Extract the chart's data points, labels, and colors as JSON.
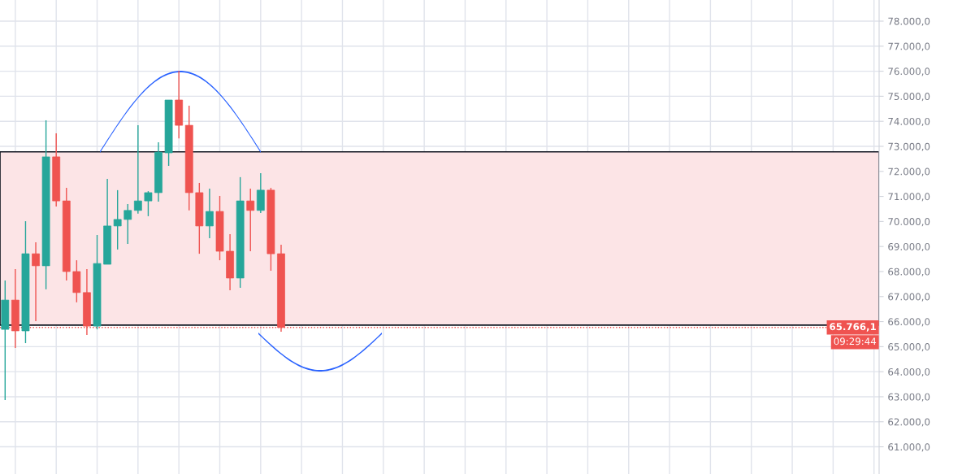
{
  "chart_data": {
    "type": "candlestick",
    "categories": [
      null,
      null,
      null,
      null,
      null,
      null,
      null,
      null,
      null,
      null,
      null,
      null,
      null,
      null,
      null,
      null,
      null,
      null,
      null,
      null,
      null,
      null,
      null,
      null,
      null,
      null,
      null,
      null,
      null,
      null,
      null,
      null,
      null,
      null,
      null,
      null,
      null,
      null,
      null,
      null,
      null,
      null,
      null,
      null,
      null,
      null,
      null,
      null,
      null,
      null,
      null,
      null,
      null,
      null,
      null,
      null,
      null,
      null,
      null,
      null,
      null,
      null,
      null,
      null,
      null,
      null,
      null,
      null,
      null,
      null,
      null,
      null,
      null,
      null,
      null,
      null,
      null,
      null,
      null,
      null,
      null,
      null,
      null,
      null,
      null,
      null
    ],
    "ohlc": [
      [
        65690,
        67640,
        62870,
        66860
      ],
      [
        66860,
        68100,
        64950,
        65630
      ],
      [
        65630,
        70010,
        65140,
        68710
      ],
      [
        68710,
        69170,
        66020,
        68230
      ],
      [
        68230,
        74040,
        67290,
        72580
      ],
      [
        72580,
        73520,
        70600,
        70820
      ],
      [
        70820,
        71340,
        67640,
        68000
      ],
      [
        68000,
        68450,
        66770,
        67160
      ],
      [
        67160,
        68100,
        65470,
        65820
      ],
      [
        65820,
        69460,
        65690,
        68320
      ],
      [
        68290,
        71700,
        68290,
        69820
      ],
      [
        69820,
        71250,
        68880,
        70080
      ],
      [
        70080,
        70690,
        69100,
        70440
      ],
      [
        70440,
        73840,
        70310,
        70820
      ],
      [
        70820,
        71210,
        70210,
        71150
      ],
      [
        71150,
        73160,
        70790,
        72770
      ],
      [
        72740,
        74850,
        72220,
        74850
      ],
      [
        74850,
        76020,
        73320,
        73840
      ],
      [
        73840,
        74620,
        70440,
        71150
      ],
      [
        71150,
        71540,
        68710,
        69820
      ],
      [
        69820,
        71310,
        69330,
        70400
      ],
      [
        70400,
        71020,
        68450,
        68810
      ],
      [
        68810,
        69490,
        67250,
        67740
      ],
      [
        67740,
        71770,
        67350,
        70820
      ],
      [
        70820,
        71310,
        68810,
        70440
      ],
      [
        70440,
        71930,
        70340,
        71250
      ],
      [
        71250,
        71340,
        68030,
        68710
      ],
      [
        68710,
        69070,
        65600,
        65766.1
      ],
      null,
      null,
      null,
      null,
      null,
      null,
      null,
      null,
      null,
      null,
      null,
      null,
      null,
      null,
      null,
      null,
      null,
      null,
      null,
      null,
      null,
      null,
      null,
      null,
      null,
      null,
      null,
      null,
      null,
      null,
      null,
      null,
      null,
      null,
      null,
      null,
      null,
      null,
      null,
      null,
      null,
      null,
      null,
      null,
      null,
      null,
      null,
      null,
      null,
      null,
      null,
      null,
      null,
      null,
      null,
      null,
      null,
      null
    ],
    "colors": [
      "#26a69a",
      "#ef5350",
      "#26a69a",
      "#ef5350",
      "#26a69a",
      "#ef5350",
      "#ef5350",
      "#ef5350",
      "#ef5350",
      "#26a69a",
      "#26a69a",
      "#26a69a",
      "#26a69a",
      "#26a69a",
      "#26a69a",
      "#26a69a",
      "#26a69a",
      "#ef5350",
      "#ef5350",
      "#ef5350",
      "#26a69a",
      "#ef5350",
      "#ef5350",
      "#26a69a",
      "#ef5350",
      "#26a69a",
      "#ef5350",
      "#ef5350",
      null,
      null,
      null,
      null,
      null,
      null,
      null,
      null,
      null,
      null,
      null,
      null,
      null,
      null,
      null,
      null,
      null,
      null,
      null,
      null,
      null,
      null,
      null,
      null,
      null,
      null,
      null,
      null,
      null,
      null,
      null,
      null,
      null,
      null,
      null,
      null,
      null,
      null,
      null,
      null,
      null,
      null,
      null,
      null,
      null,
      null,
      null,
      null,
      null,
      null,
      null,
      null,
      null,
      null,
      null,
      null,
      null,
      null
    ],
    "bands": [
      {
        "axis": "y",
        "from": 65860,
        "to": 72780,
        "color": "#fce4e6"
      }
    ],
    "ref_lines": [
      {
        "axis": "y",
        "value": 65766.1,
        "label": "65.766,1",
        "color": "#ef5350",
        "line_style": "dotted"
      }
    ],
    "annotations": [
      "09:29:44"
    ],
    "ylim": [
      59914,
      78844
    ],
    "yticks": [
      {
        "value": 61000,
        "label": "61.000,0"
      },
      {
        "value": 62000,
        "label": "62.000,0"
      },
      {
        "value": 63000,
        "label": "63.000,0"
      },
      {
        "value": 64000,
        "label": "64.000,0"
      },
      {
        "value": 65000,
        "label": "65.000,0"
      },
      {
        "value": 66000,
        "label": "66.000,0"
      },
      {
        "value": 67000,
        "label": "67.000,0"
      },
      {
        "value": 68000,
        "label": "68.000,0"
      },
      {
        "value": 69000,
        "label": "69.000,0"
      },
      {
        "value": 70000,
        "label": "70.000,0"
      },
      {
        "value": 71000,
        "label": "71.000,0"
      },
      {
        "value": 72000,
        "label": "72.000,0"
      },
      {
        "value": 73000,
        "label": "73.000,0"
      },
      {
        "value": 74000,
        "label": "74.000,0"
      },
      {
        "value": 75000,
        "label": "75.000,0"
      },
      {
        "value": 76000,
        "label": "76.000,0"
      },
      {
        "value": 77000,
        "label": "77.000,0"
      },
      {
        "value": 78000,
        "label": "78.000,0"
      }
    ],
    "tick_labels": "y",
    "grid": true
  }
}
